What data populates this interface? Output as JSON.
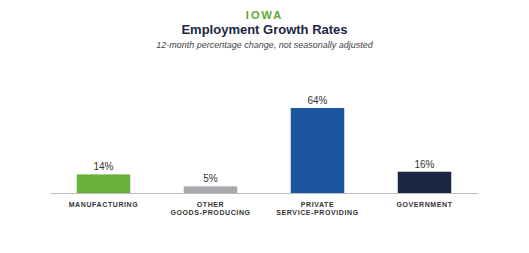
{
  "chart_data": {
    "type": "bar",
    "title": "IOWA",
    "subtitle": "Employment Growth Rates",
    "annotations": [
      "12-month percentage change, not seasonally adjusted"
    ],
    "categories": [
      "MANUFACTURING",
      "OTHER GOODS-PRODUCING",
      "PRIVATE SERVICE-PROVIDING",
      "GOVERNMENT"
    ],
    "values": [
      14,
      5,
      64,
      16
    ],
    "value_labels": [
      "14%",
      "5%",
      "64%",
      "16%"
    ],
    "colors": [
      "#6ab23e",
      "#a7a9ac",
      "#1d56a0",
      "#1b2644"
    ],
    "ylim": [
      0,
      64
    ],
    "grid": false,
    "data_labels": true,
    "tick_labels": "x"
  }
}
